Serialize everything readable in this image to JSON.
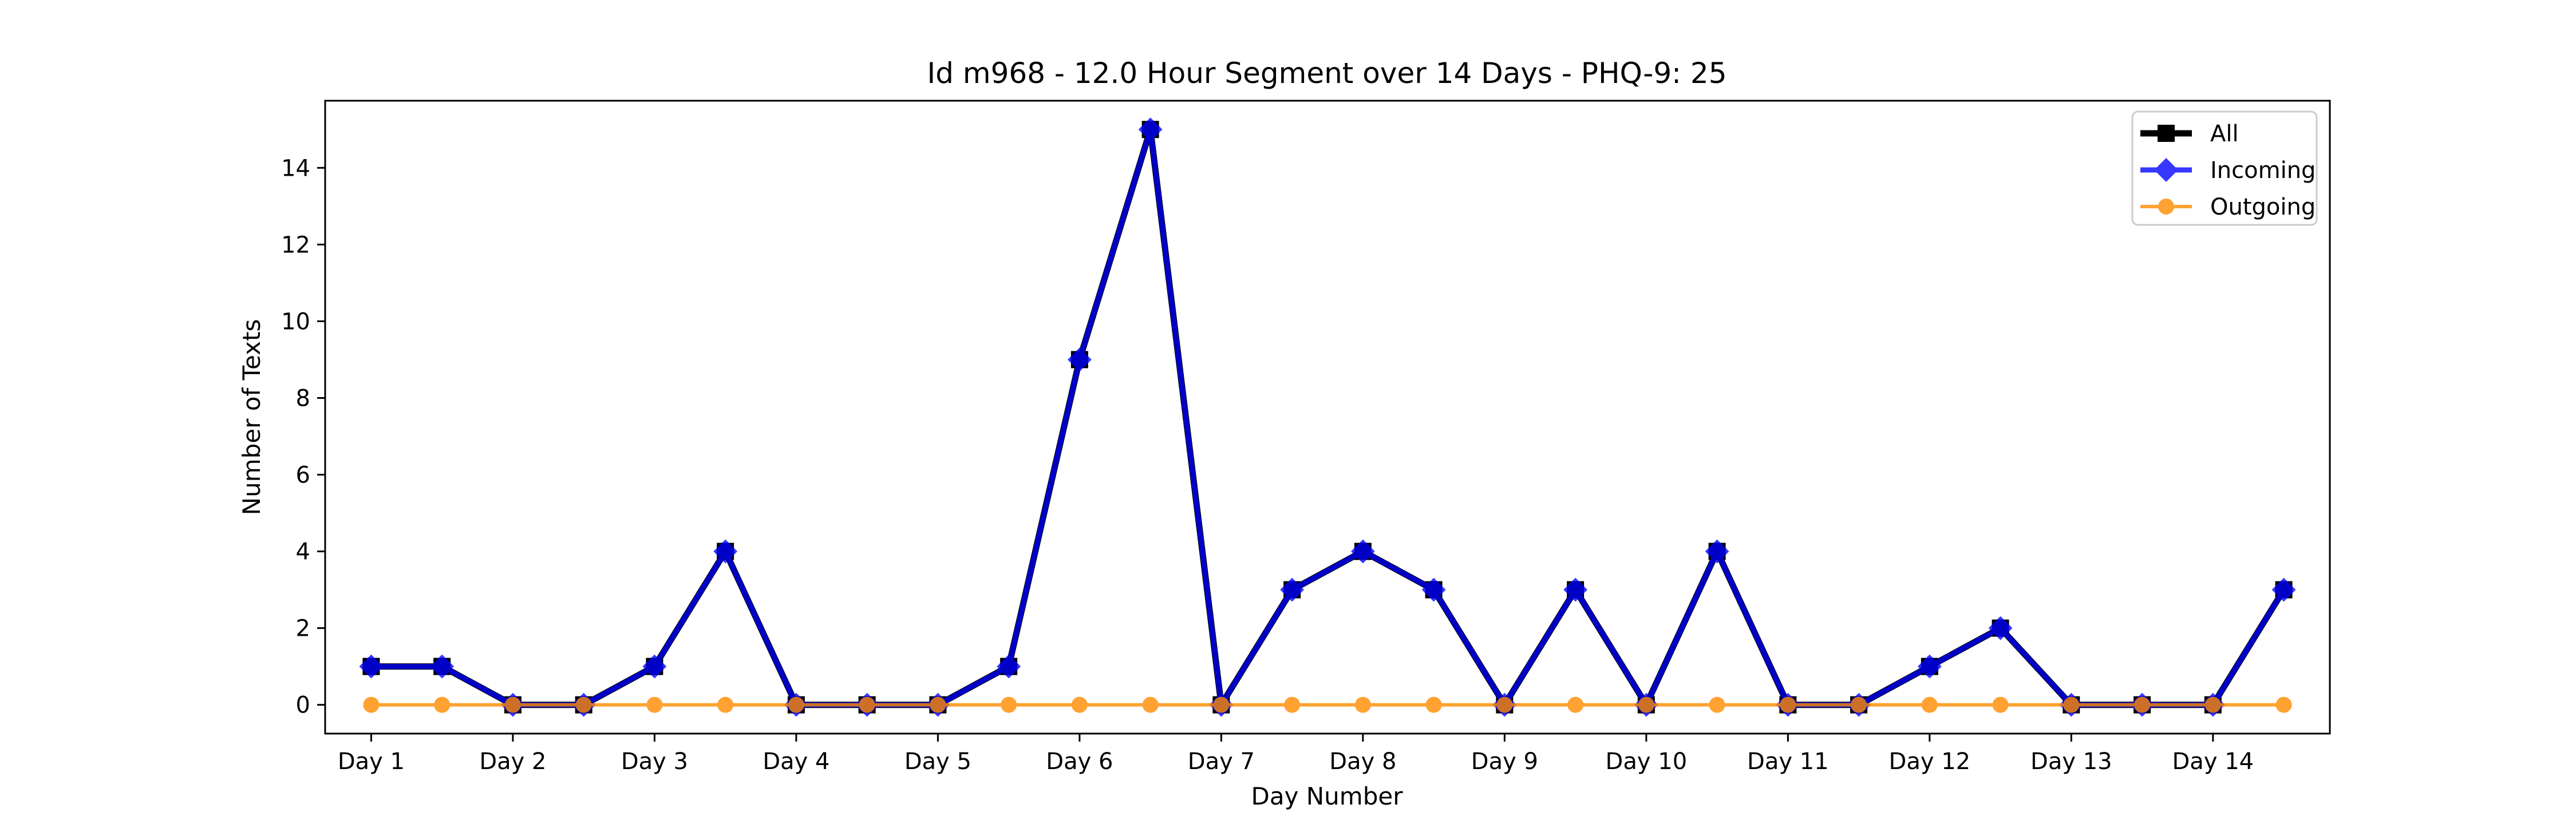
{
  "chart_data": {
    "type": "line",
    "title": "Id m968 - 12.0 Hour Segment over 14 Days - PHQ-9: 25",
    "xlabel": "Day Number",
    "ylabel": "Number of Texts",
    "x_tick_labels": [
      "Day 1",
      "Day 2",
      "Day 3",
      "Day 4",
      "Day 5",
      "Day 6",
      "Day 7",
      "Day 8",
      "Day 9",
      "Day 10",
      "Day 11",
      "Day 12",
      "Day 13",
      "Day 14"
    ],
    "y_ticks": [
      0,
      2,
      4,
      6,
      8,
      10,
      12,
      14
    ],
    "ylim": [
      -0.75,
      15.75
    ],
    "legend_position": "top-right",
    "grid": false,
    "x": [
      1,
      1.5,
      2,
      2.5,
      3,
      3.5,
      4,
      4.5,
      5,
      5.5,
      6,
      6.5,
      7,
      7.5,
      8,
      8.5,
      9,
      9.5,
      10,
      10.5,
      11,
      11.5,
      12,
      12.5,
      13,
      13.5,
      14,
      14.5
    ],
    "series": [
      {
        "name": "All",
        "color": "#000000",
        "marker": "square",
        "values": [
          1,
          1,
          0,
          0,
          1,
          4,
          0,
          0,
          0,
          1,
          9,
          15,
          0,
          3,
          4,
          3,
          0,
          3,
          0,
          4,
          0,
          0,
          1,
          2,
          0,
          0,
          0,
          3
        ]
      },
      {
        "name": "Incoming",
        "color": "#0000ff",
        "marker": "diamond",
        "values": [
          1,
          1,
          0,
          0,
          1,
          4,
          0,
          0,
          0,
          1,
          9,
          15,
          0,
          3,
          4,
          3,
          0,
          3,
          0,
          4,
          0,
          0,
          1,
          2,
          0,
          0,
          0,
          3
        ]
      },
      {
        "name": "Outgoing",
        "color": "#ff8c00",
        "marker": "circle",
        "values": [
          0,
          0,
          0,
          0,
          0,
          0,
          0,
          0,
          0,
          0,
          0,
          0,
          0,
          0,
          0,
          0,
          0,
          0,
          0,
          0,
          0,
          0,
          0,
          0,
          0,
          0,
          0,
          0
        ]
      }
    ]
  }
}
